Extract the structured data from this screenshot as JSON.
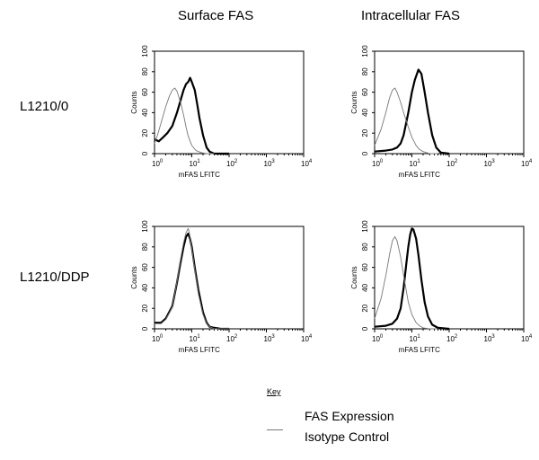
{
  "column_titles": [
    "Surface FAS",
    "Intracellular FAS"
  ],
  "row_labels": [
    "L1210/0",
    "L1210/DDP"
  ],
  "key": {
    "title": "Key",
    "entries": [
      "FAS Expression",
      "Isotype Control"
    ]
  },
  "colors": {
    "fas_expression": "#000000",
    "isotype_control": "#777777"
  },
  "chart_data": [
    {
      "type": "line",
      "panel": "L1210/0 Surface FAS",
      "xlabel": "mFAS LFITC",
      "ylabel": "Counts",
      "xscale": "log",
      "xlim": [
        1,
        10000
      ],
      "ylim": [
        0,
        100
      ],
      "xtick_exponents": [
        "0",
        "1",
        "2",
        "3",
        "4"
      ],
      "yticks": [
        0,
        20,
        40,
        60,
        80,
        100
      ],
      "series": [
        {
          "role": "FAS Expression",
          "x": [
            1,
            1.3,
            1.7,
            2.2,
            3,
            4,
            5,
            6,
            7,
            8,
            9,
            10,
            12,
            14,
            16,
            20,
            25,
            30,
            40,
            60,
            100
          ],
          "y": [
            14,
            12,
            16,
            20,
            27,
            40,
            52,
            62,
            68,
            70,
            74,
            70,
            62,
            48,
            35,
            18,
            6,
            2,
            0,
            0,
            0
          ]
        },
        {
          "role": "Isotype Control",
          "x": [
            1,
            1.2,
            1.5,
            2,
            2.5,
            3,
            3.5,
            4,
            5,
            6,
            7,
            8,
            10,
            13,
            18,
            25,
            40
          ],
          "y": [
            10,
            18,
            30,
            46,
            56,
            62,
            64,
            61,
            50,
            38,
            26,
            17,
            8,
            3,
            1,
            0,
            0
          ]
        }
      ]
    },
    {
      "type": "line",
      "panel": "L1210/0 Intracellular FAS",
      "xlabel": "mFAS LFITC",
      "ylabel": "Counts",
      "xscale": "log",
      "xlim": [
        1,
        10000
      ],
      "ylim": [
        0,
        100
      ],
      "xtick_exponents": [
        "0",
        "1",
        "2",
        "3",
        "4"
      ],
      "yticks": [
        0,
        20,
        40,
        60,
        80,
        100
      ],
      "series": [
        {
          "role": "FAS Expression",
          "x": [
            1,
            2,
            3,
            4,
            5,
            6,
            8,
            10,
            12,
            15,
            18,
            22,
            27,
            35,
            45,
            60,
            100
          ],
          "y": [
            2,
            3,
            4,
            6,
            10,
            18,
            40,
            60,
            72,
            82,
            78,
            60,
            40,
            18,
            6,
            1,
            0
          ]
        },
        {
          "role": "Isotype Control",
          "x": [
            1,
            1.5,
            2,
            2.5,
            3,
            3.5,
            4,
            5,
            6,
            8,
            10,
            13,
            16,
            20,
            30,
            50
          ],
          "y": [
            8,
            24,
            40,
            54,
            62,
            64,
            60,
            50,
            40,
            26,
            16,
            8,
            4,
            2,
            0,
            0
          ]
        }
      ]
    },
    {
      "type": "line",
      "panel": "L1210/DDP Surface FAS",
      "xlabel": "mFAS LFITC",
      "ylabel": "Counts",
      "xscale": "log",
      "xlim": [
        1,
        10000
      ],
      "ylim": [
        0,
        100
      ],
      "xtick_exponents": [
        "0",
        "1",
        "2",
        "3",
        "4"
      ],
      "yticks": [
        0,
        20,
        40,
        60,
        80,
        100
      ],
      "series": [
        {
          "role": "FAS Expression",
          "x": [
            1,
            1.5,
            2,
            3,
            4,
            5,
            6,
            7,
            8,
            9,
            10,
            12,
            15,
            20,
            25,
            30,
            40,
            60,
            100
          ],
          "y": [
            6,
            6,
            10,
            22,
            45,
            65,
            80,
            90,
            93,
            88,
            80,
            60,
            38,
            16,
            6,
            2,
            1,
            0,
            0
          ]
        },
        {
          "role": "Isotype Control",
          "x": [
            1,
            1.5,
            2,
            3,
            4,
            5,
            6,
            7,
            8,
            9,
            10,
            12,
            15,
            20,
            25,
            30,
            40,
            60,
            100
          ],
          "y": [
            5,
            5,
            9,
            21,
            46,
            68,
            84,
            94,
            98,
            90,
            78,
            58,
            34,
            14,
            5,
            2,
            0,
            0,
            0
          ]
        }
      ]
    },
    {
      "type": "line",
      "panel": "L1210/DDP Intracellular FAS",
      "xlabel": "mFAS LFITC",
      "ylabel": "Counts",
      "xscale": "log",
      "xlim": [
        1,
        10000
      ],
      "ylim": [
        0,
        100
      ],
      "xtick_exponents": [
        "0",
        "1",
        "2",
        "3",
        "4"
      ],
      "yticks": [
        0,
        20,
        40,
        60,
        80,
        100
      ],
      "series": [
        {
          "role": "FAS Expression",
          "x": [
            1,
            2,
            3,
            4,
            5,
            6,
            7,
            8,
            9,
            10,
            11,
            13,
            15,
            18,
            22,
            27,
            35,
            50,
            100
          ],
          "y": [
            2,
            3,
            5,
            10,
            20,
            40,
            62,
            80,
            92,
            98,
            97,
            88,
            72,
            48,
            26,
            12,
            4,
            1,
            0
          ]
        },
        {
          "role": "Isotype Control",
          "x": [
            1,
            1.5,
            2,
            2.5,
            3,
            3.5,
            4,
            5,
            6,
            7,
            8,
            10,
            13,
            16,
            20,
            30,
            50
          ],
          "y": [
            10,
            30,
            52,
            72,
            86,
            90,
            86,
            70,
            52,
            38,
            26,
            14,
            6,
            3,
            1,
            0,
            0
          ]
        }
      ]
    }
  ]
}
